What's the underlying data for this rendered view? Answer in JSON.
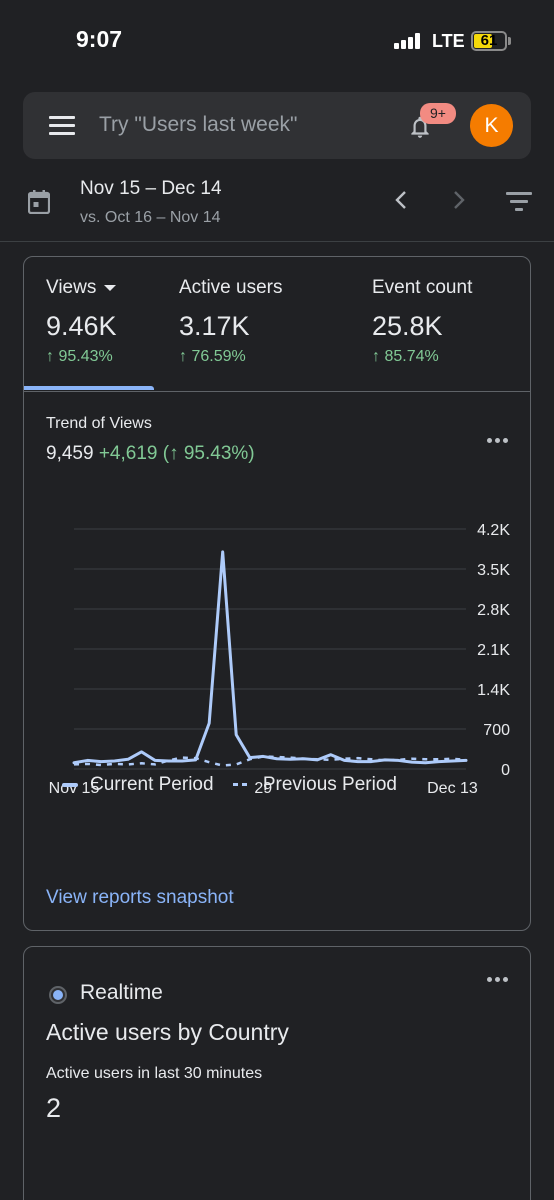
{
  "status_bar": {
    "time": "9:07",
    "network": "LTE",
    "battery": "61",
    "battery_level": 0.61
  },
  "search": {
    "placeholder": "Try \"Users last week\"",
    "notification_count": "9+",
    "avatar_letter": "K"
  },
  "date_range": {
    "current": "Nov 15 – Dec 14",
    "compare": "vs. Oct 16 – Nov 14"
  },
  "metrics": [
    {
      "label": "Views",
      "value": "9.46K",
      "change": "↑ 95.43%"
    },
    {
      "label": "Active users",
      "value": "3.17K",
      "change": "↑ 76.59%"
    },
    {
      "label": "Event count",
      "value": "25.8K",
      "change": "↑ 85.74%"
    }
  ],
  "trend": {
    "title": "Trend of Views",
    "total": "9,459",
    "delta": "+4,619 (↑ 95.43%)"
  },
  "chart_data": {
    "type": "line",
    "x_tick_labels": [
      "Nov 15",
      "29",
      "Dec 13"
    ],
    "y_tick_labels": [
      "0",
      "700",
      "1.4K",
      "2.1K",
      "2.8K",
      "3.5K",
      "4.2K"
    ],
    "ylim": [
      0,
      4200
    ],
    "grid": true,
    "legend_position": "bottom",
    "colors": {
      "current": "#aecbfa",
      "previous": "#aecbfa"
    },
    "series": [
      {
        "name": "Current Period",
        "style": "solid",
        "values": [
          110,
          150,
          130,
          140,
          170,
          300,
          150,
          140,
          140,
          160,
          800,
          3800,
          600,
          200,
          220,
          180,
          170,
          180,
          160,
          250,
          150,
          130,
          130,
          160,
          150,
          120,
          110,
          130,
          140,
          150
        ]
      },
      {
        "name": "Previous Period",
        "style": "dashed",
        "values": [
          80,
          90,
          70,
          90,
          80,
          100,
          80,
          150,
          200,
          190,
          120,
          60,
          80,
          170,
          220,
          210,
          200,
          180,
          170,
          160,
          180,
          190,
          170,
          150,
          160,
          180,
          170,
          170,
          180,
          160
        ]
      }
    ]
  },
  "legend": {
    "current": "Current Period",
    "previous": "Previous Period"
  },
  "snapshot_link": "View reports snapshot",
  "realtime": {
    "label": "Realtime",
    "title": "Active users by Country",
    "subtitle": "Active users in last 30 minutes",
    "value": "2"
  }
}
